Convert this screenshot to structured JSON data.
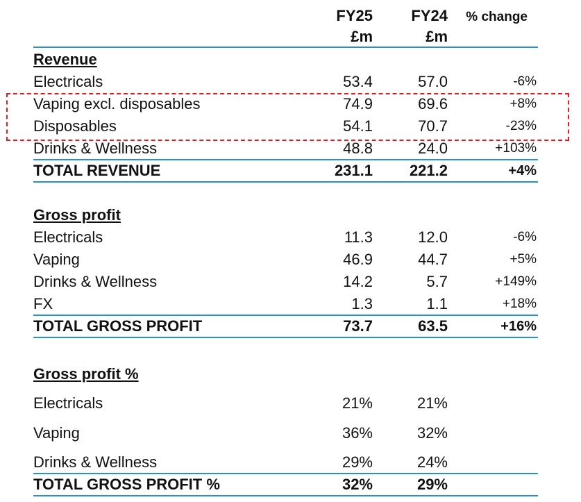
{
  "headers": {
    "fy25_line1": "FY25",
    "fy25_line2": "£m",
    "fy24_line1": "FY24",
    "fy24_line2": "£m",
    "change": "% change"
  },
  "revenue": {
    "title": "Revenue",
    "rows": [
      {
        "label": "Electricals",
        "fy25": "53.4",
        "fy24": "57.0",
        "change": "-6%"
      },
      {
        "label": "Vaping excl. disposables",
        "fy25": "74.9",
        "fy24": "69.6",
        "change": "+8%"
      },
      {
        "label": "Disposables",
        "fy25": "54.1",
        "fy24": "70.7",
        "change": "-23%"
      },
      {
        "label": "Drinks & Wellness",
        "fy25": "48.8",
        "fy24": "24.0",
        "change": "+103%"
      }
    ],
    "total": {
      "label": "TOTAL REVENUE",
      "fy25": "231.1",
      "fy24": "221.2",
      "change": "+4%"
    }
  },
  "gross_profit": {
    "title": "Gross profit",
    "rows": [
      {
        "label": "Electricals",
        "fy25": "11.3",
        "fy24": "12.0",
        "change": "-6%"
      },
      {
        "label": "Vaping",
        "fy25": "46.9",
        "fy24": "44.7",
        "change": "+5%"
      },
      {
        "label": "Drinks & Wellness",
        "fy25": "14.2",
        "fy24": "5.7",
        "change": "+149%"
      },
      {
        "label": "FX",
        "fy25": "1.3",
        "fy24": "1.1",
        "change": "+18%"
      }
    ],
    "total": {
      "label": "TOTAL GROSS PROFIT",
      "fy25": "73.7",
      "fy24": "63.5",
      "change": "+16%"
    }
  },
  "gross_profit_pct": {
    "title": "Gross profit %",
    "rows": [
      {
        "label": "Electricals",
        "fy25": "21%",
        "fy24": "21%"
      },
      {
        "label": "Vaping",
        "fy25": "36%",
        "fy24": "32%"
      },
      {
        "label": "Drinks & Wellness",
        "fy25": "29%",
        "fy24": "24%"
      }
    ],
    "total": {
      "label": "TOTAL GROSS PROFIT %",
      "fy25": "32%",
      "fy24": "29%"
    }
  },
  "colors": {
    "rule": "#2a8fd4",
    "highlight": "#e02020"
  }
}
